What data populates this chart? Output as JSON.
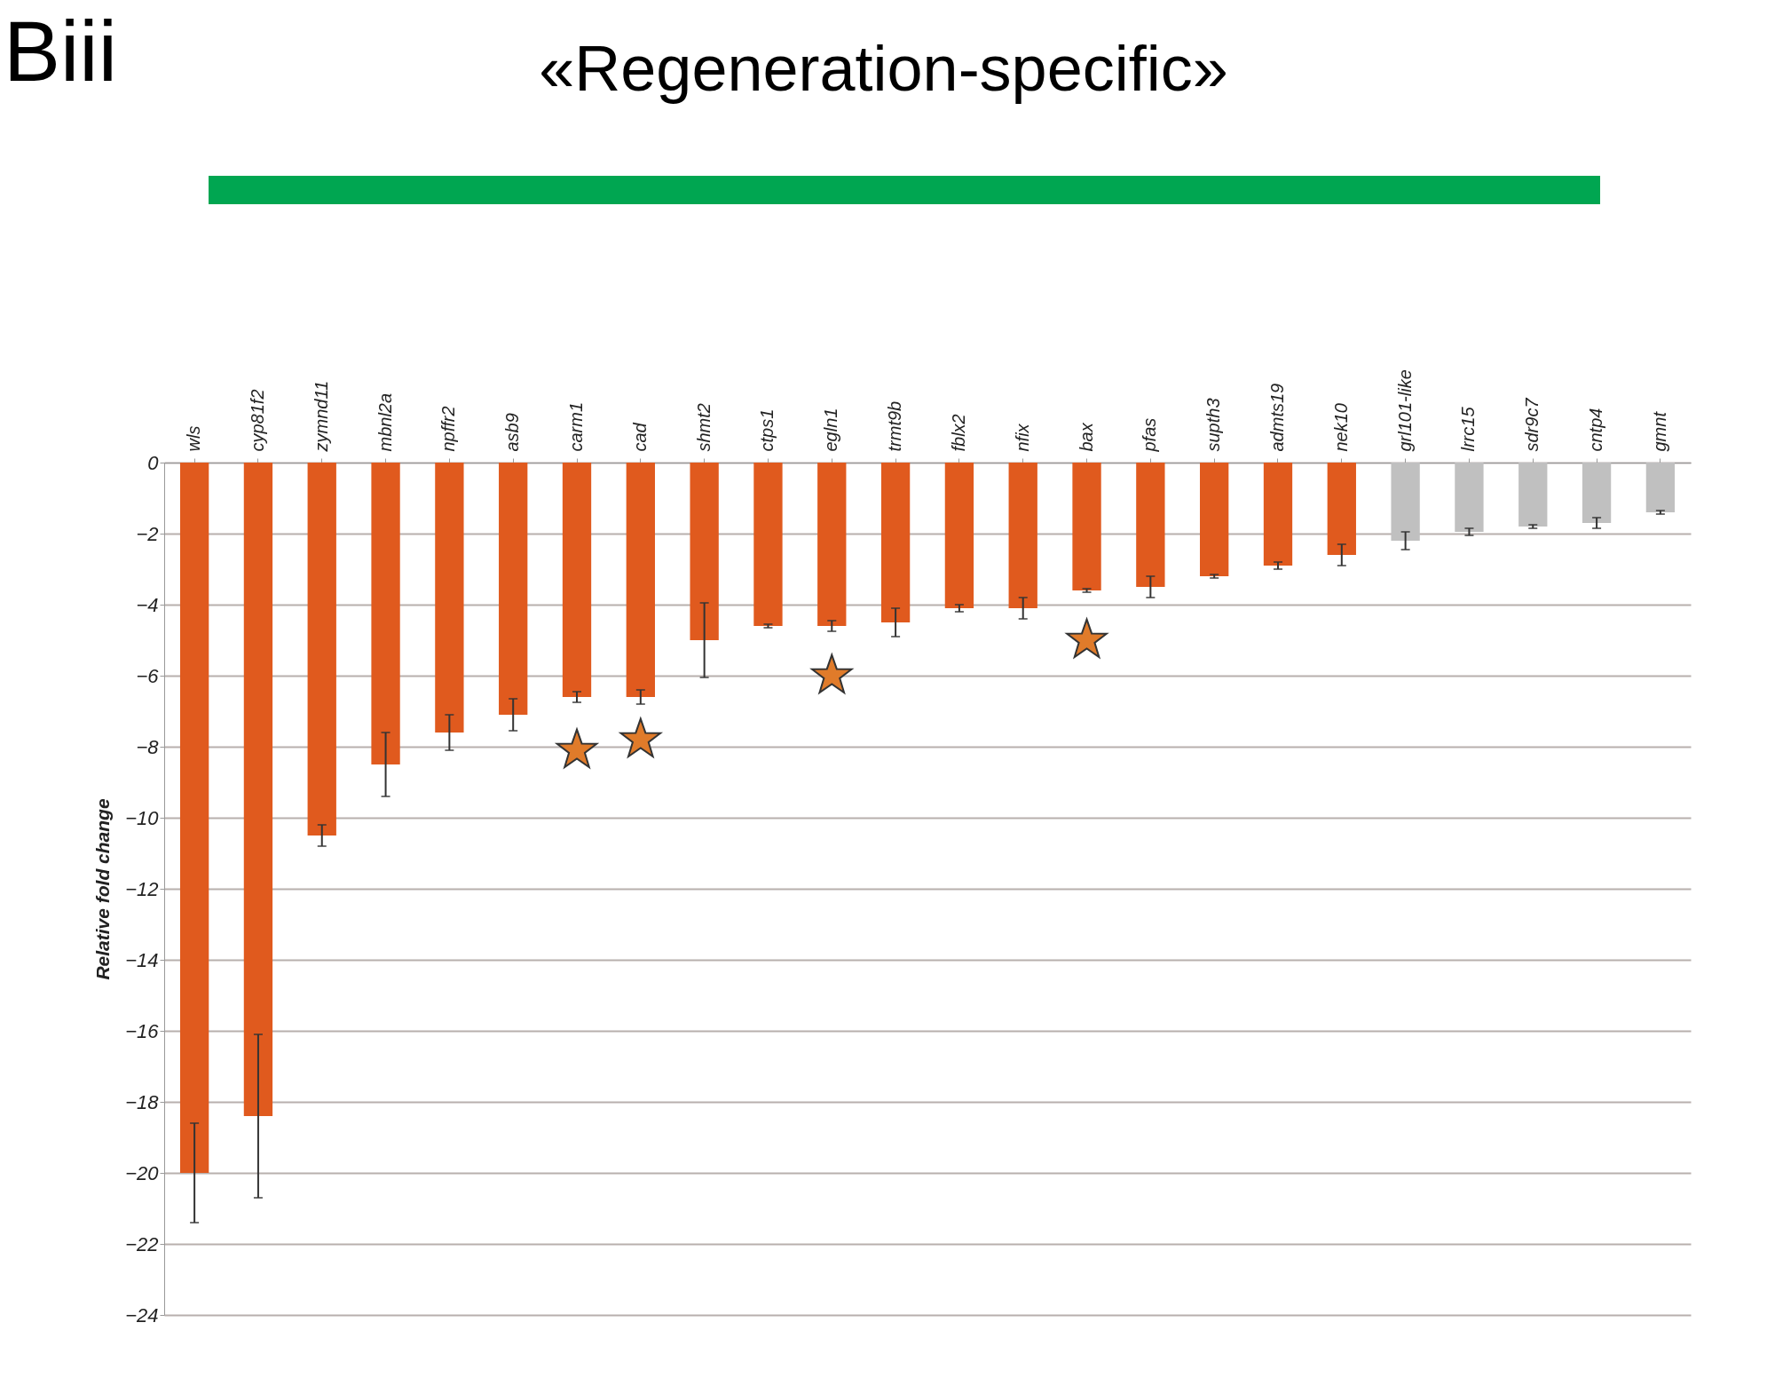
{
  "chart_data": {
    "type": "bar",
    "title": "«Regeneration-specific»",
    "annotations": [
      "Biii"
    ],
    "ylabel": "Relative fold change",
    "categories": [
      "wls",
      "cyp81f2",
      "zymnd11",
      "mbnl2a",
      "npffr2",
      "asb9",
      "carm1",
      "cad",
      "shmt2",
      "ctps1",
      "egln1",
      "trmt9b",
      "fblx2",
      "nfix",
      "bax",
      "pfas",
      "supth3",
      "admts19",
      "nek10",
      "grl101-like",
      "lrrc15",
      "sdr9c7",
      "cntp4",
      "gmnt"
    ],
    "series": [
      {
        "type": "bar",
        "values": [
          -20,
          -18.4,
          -10.5,
          -8.5,
          -7.6,
          -7.1,
          -6.6,
          -6.6,
          -5.0,
          -4.6,
          -4.6,
          -4.5,
          -4.1,
          -4.1,
          -3.6,
          -3.5,
          -3.2,
          -2.9,
          -2.6,
          -2.2,
          -1.95,
          -1.8,
          -1.7,
          -1.4
        ],
        "errors": [
          1.4,
          2.3,
          0.3,
          0.9,
          0.5,
          0.45,
          0.15,
          0.2,
          1.05,
          0.05,
          0.15,
          0.4,
          0.1,
          0.3,
          0.05,
          0.3,
          0.05,
          0.1,
          0.3,
          0.25,
          0.1,
          0.05,
          0.15,
          0.05
        ],
        "colors": [
          "#e05a1e",
          "#e05a1e",
          "#e05a1e",
          "#e05a1e",
          "#e05a1e",
          "#e05a1e",
          "#e05a1e",
          "#e05a1e",
          "#e05a1e",
          "#e05a1e",
          "#e05a1e",
          "#e05a1e",
          "#e05a1e",
          "#e05a1e",
          "#e05a1e",
          "#e05a1e",
          "#e05a1e",
          "#e05a1e",
          "#e05a1e",
          "#c0c0c0",
          "#c0c0c0",
          "#c0c0c0",
          "#c0c0c0",
          "#c0c0c0"
        ]
      },
      {
        "type": "scatter",
        "x": [
          "carm1",
          "cad",
          "egln1",
          "bax"
        ],
        "values": [
          -8.1,
          -7.8,
          -6,
          -5
        ],
        "color": "#e07b2a",
        "marker": "star"
      }
    ],
    "ylim": [
      -24,
      0
    ],
    "yticks": [
      0,
      -2,
      -4,
      -6,
      -8,
      -10,
      -12,
      -14,
      -16,
      -18,
      -20,
      -22,
      -24
    ],
    "grid": "y"
  }
}
